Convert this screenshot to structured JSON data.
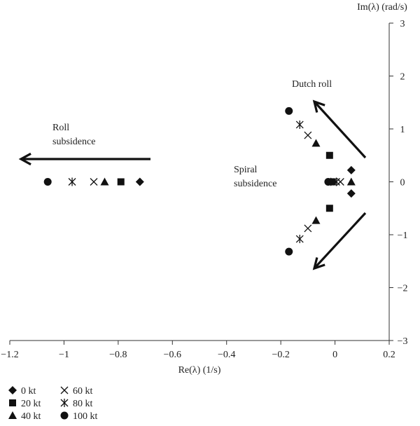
{
  "chart_data": {
    "type": "scatter",
    "title": "",
    "xlabel": "Re(λ) (1/s)",
    "ylabel": "Im(λ) (rad/s)",
    "xlim": [
      -1.2,
      0.2
    ],
    "ylim": [
      -3,
      3
    ],
    "xticks": [
      "−1.2",
      "−1",
      "−0.8",
      "−0.6",
      "−0.4",
      "−0.2",
      "0",
      "0.2"
    ],
    "yticks": [
      "−3",
      "−2",
      "−1",
      "0",
      "1",
      "2",
      "3"
    ],
    "grid": false,
    "legend_position": "bottom-left",
    "series": [
      {
        "name": "0 kt",
        "marker": "diamond",
        "points": [
          [
            -0.72,
            0
          ],
          [
            0.06,
            0.22
          ],
          [
            0.06,
            -0.22
          ],
          [
            -0.015,
            0
          ]
        ]
      },
      {
        "name": "20 kt",
        "marker": "square",
        "points": [
          [
            -0.79,
            0
          ],
          [
            -0.02,
            0.5
          ],
          [
            -0.02,
            -0.5
          ],
          [
            -0.01,
            0
          ]
        ]
      },
      {
        "name": "40 kt",
        "marker": "triangle",
        "points": [
          [
            -0.85,
            0
          ],
          [
            -0.07,
            0.73
          ],
          [
            -0.07,
            -0.73
          ],
          [
            0.06,
            0
          ]
        ]
      },
      {
        "name": "60 kt",
        "marker": "x",
        "points": [
          [
            -0.89,
            0
          ],
          [
            -0.1,
            0.88
          ],
          [
            -0.1,
            -0.88
          ],
          [
            0.02,
            0
          ]
        ]
      },
      {
        "name": "80 kt",
        "marker": "asterisk",
        "points": [
          [
            -0.97,
            0
          ],
          [
            -0.13,
            1.08
          ],
          [
            -0.13,
            -1.08
          ],
          [
            0.005,
            0
          ]
        ]
      },
      {
        "name": "100 kt",
        "marker": "circle",
        "points": [
          [
            -1.06,
            0
          ],
          [
            -0.17,
            1.34
          ],
          [
            -0.17,
            -1.32
          ],
          [
            -0.025,
            0
          ]
        ]
      }
    ],
    "annotations": {
      "roll": "Roll\nsubsidence",
      "dutch": "Dutch roll",
      "spiral": "Spiral\nsubsidence"
    }
  }
}
